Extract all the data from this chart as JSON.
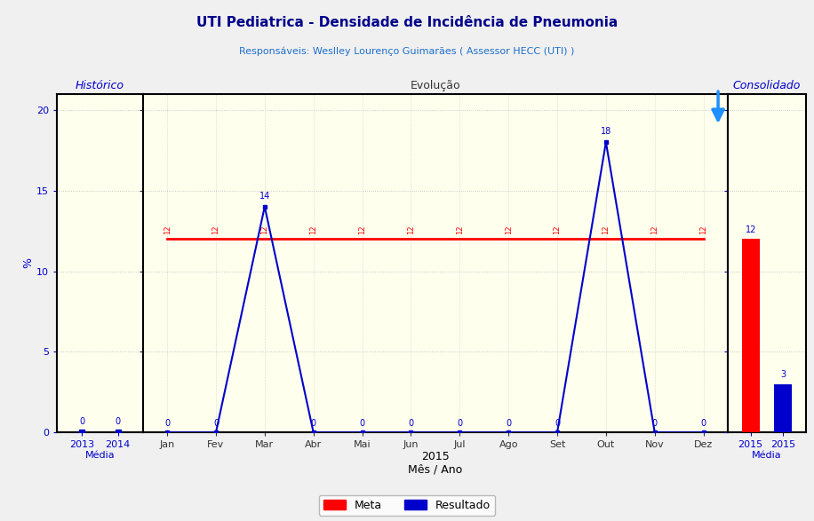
{
  "title": "UTI Pediatrica - Densidade de Incidência de Pneumonia",
  "subtitle": "Responsáveis: Weslley Lourenço Guimarães ( Assessor HECC (UTI) )",
  "title_color": "#00008B",
  "subtitle_color": "#1E6FCC",
  "ylabel": "%",
  "xlabel": "Mês / Ano",
  "background_color": "#FFFFEE",
  "outer_bg_color": "#F0F0F0",
  "hist_title": "Histórico",
  "evol_title": "Evolução",
  "consol_title": "Consolidado",
  "hist_years": [
    "2013",
    "2014"
  ],
  "hist_values": [
    0,
    0
  ],
  "evol_months": [
    "Jan",
    "Fev",
    "Mar",
    "Abr",
    "Mai",
    "Jun",
    "Jul",
    "Ago",
    "Set",
    "Out",
    "Nov",
    "Dez"
  ],
  "evol_meta": [
    12,
    12,
    12,
    12,
    12,
    12,
    12,
    12,
    12,
    12,
    12,
    12
  ],
  "evol_resultado": [
    0,
    0,
    14,
    0,
    0,
    0,
    0,
    0,
    0,
    18,
    0,
    0
  ],
  "consol_meta": 12,
  "consol_resultado": 3,
  "meta_color": "#FF0000",
  "resultado_color": "#0000CC",
  "ylim": [
    0,
    21
  ],
  "yticks": [
    0,
    5,
    10,
    15,
    20
  ],
  "year_label": "2015",
  "grid_color": "#BBBBBB",
  "panel_border_color": "#000000",
  "hist_title_color": "#0000CC",
  "evol_title_color": "#333333",
  "consol_title_color": "#0000CC",
  "arrow_color": "#1E90FF",
  "tick_color": "#0000CC"
}
